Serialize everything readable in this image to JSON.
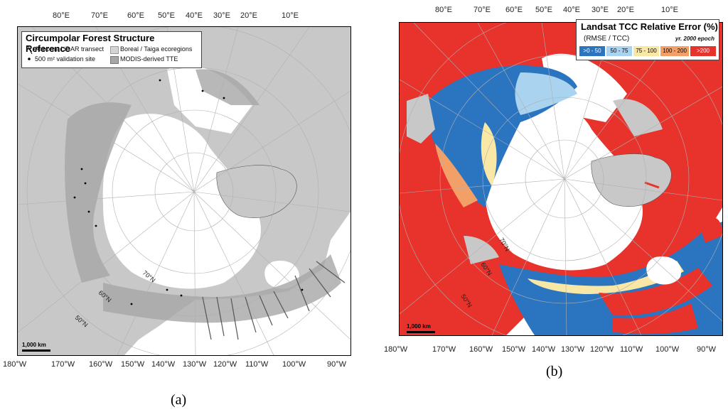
{
  "panel_a": {
    "label": "(a)",
    "legend": {
      "title": "Circumpolar Forest Structure Reference",
      "items": [
        {
          "symbol": "transect-line-icon",
          "label": "Airborne LiDAR transect"
        },
        {
          "symbol": "validation-site-dot-icon",
          "label": "500 m² validation site"
        },
        {
          "symbol": "boreal-swatch",
          "label": "Boreal / Taiga ecoregions",
          "color": "#d4d4d4"
        },
        {
          "symbol": "modis-swatch",
          "label": "MODIS-derived TTE",
          "color": "#a6a6a6"
        }
      ]
    },
    "top_ticks": [
      "80°E",
      "70°E",
      "60°E",
      "50°E",
      "40°E",
      "30°E",
      "20°E",
      "10°E"
    ],
    "bottom_ticks": [
      "180°W",
      "170°W",
      "160°W",
      "150°W",
      "140°W",
      "130°W",
      "120°W",
      "110°W",
      "100°W",
      "90°W"
    ],
    "lat_labels": [
      "70°N",
      "60°N",
      "50°N"
    ],
    "scale_bar": "1,000 km"
  },
  "panel_b": {
    "label": "(b)",
    "legend": {
      "title": "Landsat TCC Relative Error (%)",
      "subtitle": "(RMSE / TCC)",
      "epoch": "yr. 2000 epoch",
      "classes": [
        {
          "label": ">0 - 50",
          "color": "#2b74c0",
          "text_color": "#ffffff"
        },
        {
          "label": "50 - 75",
          "color": "#a9d3ee",
          "text_color": "#000000"
        },
        {
          "label": "75 - 100",
          "color": "#f9e7a6",
          "text_color": "#000000"
        },
        {
          "label": "100 - 200",
          "color": "#f3a068",
          "text_color": "#000000"
        },
        {
          "label": ">200",
          "color": "#e8322c",
          "text_color": "#ffffff"
        }
      ]
    },
    "top_ticks": [
      "80°E",
      "70°E",
      "60°E",
      "50°E",
      "40°E",
      "30°E",
      "20°E",
      "10°E"
    ],
    "bottom_ticks": [
      "180°W",
      "170°W",
      "160°W",
      "150°W",
      "140°W",
      "130°W",
      "120°W",
      "110°W",
      "100°W",
      "90°W"
    ],
    "lat_labels": [
      "70°N",
      "60°N",
      "50°N"
    ],
    "scale_bar": "1,000 km"
  },
  "colors": {
    "ocean": "#ffffff",
    "land_gray": "#c8c8c8",
    "boreal": "#d4d4d4",
    "modis": "#a6a6a6",
    "graticule": "#b0b0b0"
  }
}
